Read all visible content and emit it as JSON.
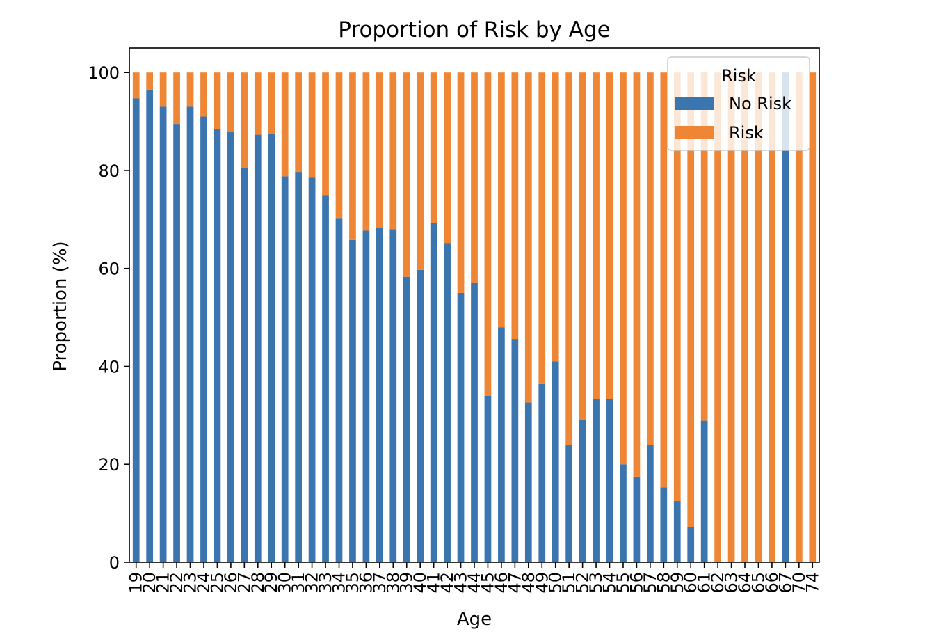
{
  "chart_data": {
    "type": "bar",
    "stacked": true,
    "title": "Proportion of Risk by Age",
    "xlabel": "Age",
    "ylabel": "Proportion (%)",
    "ylim": [
      0,
      105
    ],
    "yticks": [
      0,
      20,
      40,
      60,
      80,
      100
    ],
    "grid": false,
    "legend": {
      "title": "Risk",
      "position": "top-right"
    },
    "categories": [
      "19",
      "20",
      "21",
      "22",
      "23",
      "24",
      "25",
      "26",
      "27",
      "28",
      "29",
      "30",
      "31",
      "32",
      "33",
      "34",
      "35",
      "36",
      "37",
      "38",
      "39",
      "40",
      "41",
      "42",
      "43",
      "44",
      "45",
      "46",
      "47",
      "48",
      "49",
      "50",
      "51",
      "52",
      "53",
      "54",
      "55",
      "56",
      "57",
      "58",
      "59",
      "60",
      "61",
      "62",
      "63",
      "64",
      "65",
      "66",
      "67",
      "70",
      "74"
    ],
    "series": [
      {
        "name": "No Risk",
        "color": "#3b75af",
        "values": [
          94.7,
          96.5,
          93.0,
          89.5,
          93.0,
          91.0,
          88.5,
          88.0,
          80.5,
          87.3,
          87.5,
          78.8,
          79.7,
          78.5,
          75.0,
          70.3,
          65.8,
          67.7,
          68.2,
          68.0,
          58.3,
          59.7,
          69.3,
          65.2,
          55.0,
          57.0,
          34.0,
          48.0,
          45.6,
          32.6,
          36.4,
          41.0,
          24.0,
          29.1,
          33.3,
          33.3,
          20.0,
          17.5,
          24.0,
          15.3,
          12.5,
          7.2,
          28.9,
          0,
          0,
          0,
          0,
          0,
          100,
          0,
          0
        ]
      },
      {
        "name": "Risk",
        "color": "#ef8636",
        "values": [
          5.3,
          3.5,
          7.0,
          10.5,
          7.0,
          9.0,
          11.5,
          12.0,
          19.5,
          12.7,
          12.5,
          21.2,
          20.3,
          21.5,
          25.0,
          29.7,
          34.2,
          32.3,
          31.8,
          32.0,
          41.7,
          40.3,
          30.7,
          34.8,
          45.0,
          43.0,
          66.0,
          52.0,
          54.4,
          67.4,
          63.6,
          59.0,
          76.0,
          70.9,
          66.7,
          66.7,
          80.0,
          82.5,
          76.0,
          84.7,
          87.5,
          92.8,
          71.1,
          100,
          100,
          100,
          100,
          100,
          0,
          100,
          100
        ]
      }
    ]
  }
}
